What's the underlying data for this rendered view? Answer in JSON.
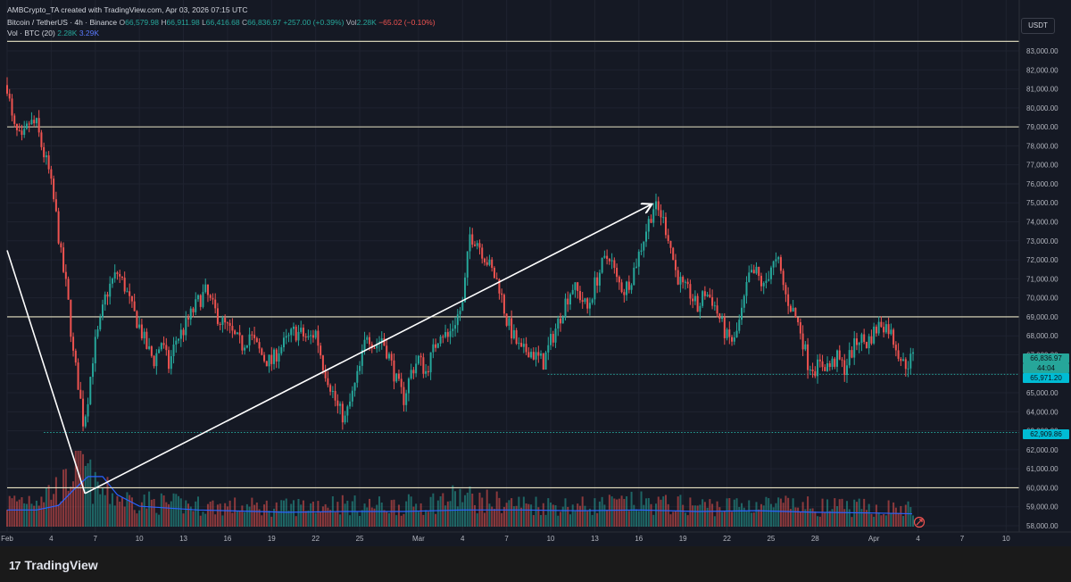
{
  "header": {
    "creator_line": "AMBCrypto_TA created with TradingView.com, Apr 03, 2026 07:15 UTC",
    "symbol": "Bitcoin / TetherUS · 4h · Binance",
    "open_label": "O",
    "open": "66,579.98",
    "high_label": "H",
    "high": "66,911.98",
    "low_label": "L",
    "low": "66,416.68",
    "close_label": "C",
    "close": "66,836.97",
    "change": "+257.00 (+0.39%)",
    "vol_label": "Vol",
    "vol": "2.28K",
    "vol_change": "−65.02 (−0.10%)",
    "vol_indicator": "Vol · BTC (20)",
    "vol_now": "2.28K",
    "vol_ma": "3.29K"
  },
  "currency_button": "USDT",
  "price_tags": {
    "last_price": "66,836.97",
    "countdown": "44:04",
    "support_a": "65,971.20",
    "support_b": "62,909.86"
  },
  "brand": {
    "logo": "17",
    "name": "TradingView"
  },
  "colors": {
    "bull": "#26a69a",
    "bear": "#ef5350",
    "level": "#e8e3c4",
    "trend": "#ffffff",
    "vol_ma": "#2962ff",
    "tag_cyan": "#00bcd4"
  },
  "chart_data": {
    "type": "candlestick",
    "title": "Bitcoin / TetherUS · 4h · Binance",
    "y_axis": {
      "min": 57500,
      "max": 83800,
      "ticks": [
        "58,000.00",
        "59,000.00",
        "60,000.00",
        "61,000.00",
        "62,000.00",
        "63,000.00",
        "64,000.00",
        "65,000.00",
        "66,000.00",
        "67,000.00",
        "68,000.00",
        "69,000.00",
        "70,000.00",
        "71,000.00",
        "72,000.00",
        "73,000.00",
        "74,000.00",
        "75,000.00",
        "76,000.00",
        "77,000.00",
        "78,000.00",
        "79,000.00",
        "80,000.00",
        "81,000.00",
        "82,000.00",
        "83,000.00"
      ],
      "tick_values": [
        58000,
        59000,
        60000,
        61000,
        62000,
        63000,
        64000,
        65000,
        66000,
        67000,
        68000,
        69000,
        70000,
        71000,
        72000,
        73000,
        74000,
        75000,
        76000,
        77000,
        78000,
        79000,
        80000,
        81000,
        82000,
        83000
      ]
    },
    "x_axis": {
      "start_day": 1,
      "end_day": 69.5,
      "ticks": [
        {
          "label": "Feb",
          "day": 1.0
        },
        {
          "label": "4",
          "day": 4.0
        },
        {
          "label": "7",
          "day": 7.0
        },
        {
          "label": "10",
          "day": 10.0
        },
        {
          "label": "13",
          "day": 13.0
        },
        {
          "label": "16",
          "day": 16.0
        },
        {
          "label": "19",
          "day": 19.0
        },
        {
          "label": "22",
          "day": 22.0
        },
        {
          "label": "25",
          "day": 25.0
        },
        {
          "label": "Mar",
          "day": 29.0
        },
        {
          "label": "4",
          "day": 32.0
        },
        {
          "label": "7",
          "day": 35.0
        },
        {
          "label": "10",
          "day": 38.0
        },
        {
          "label": "13",
          "day": 41.0
        },
        {
          "label": "16",
          "day": 44.0
        },
        {
          "label": "19",
          "day": 47.0
        },
        {
          "label": "22",
          "day": 50.0
        },
        {
          "label": "25",
          "day": 53.0
        },
        {
          "label": "28",
          "day": 56.0
        },
        {
          "label": "Apr",
          "day": 60.0
        },
        {
          "label": "4",
          "day": 63.0
        },
        {
          "label": "7",
          "day": 66.0
        },
        {
          "label": "10",
          "day": 69.0
        }
      ]
    },
    "horizontal_levels": [
      {
        "price": 83500,
        "style": "solid",
        "color": "#e8e3c4"
      },
      {
        "price": 79000,
        "style": "solid",
        "color": "#e8e3c4"
      },
      {
        "price": 69000,
        "style": "solid",
        "color": "#e8e3c4"
      },
      {
        "price": 60000,
        "style": "solid",
        "color": "#e8e3c4"
      },
      {
        "price": 65971.2,
        "style": "dotted",
        "color": "#26a69a",
        "from_day": 37.8
      },
      {
        "price": 62909.86,
        "style": "dotted",
        "color": "#26a69a",
        "from_day": 3.5
      }
    ],
    "trend_lines": [
      {
        "from": {
          "day": 1.0,
          "price": 72500
        },
        "to": {
          "day": 6.3,
          "price": 59700
        }
      },
      {
        "from": {
          "day": 6.3,
          "price": 59700
        },
        "to": {
          "day": 44.8,
          "price": 74900
        },
        "arrow": true
      }
    ],
    "price_path": [
      [
        1.0,
        81200
      ],
      [
        1.4,
        79000
      ],
      [
        2.0,
        78200
      ],
      [
        2.5,
        79200
      ],
      [
        3.0,
        79100
      ],
      [
        3.4,
        77800
      ],
      [
        3.8,
        76800
      ],
      [
        4.3,
        74500
      ],
      [
        4.7,
        72000
      ],
      [
        5.1,
        70200
      ],
      [
        5.5,
        67000
      ],
      [
        5.9,
        65200
      ],
      [
        6.2,
        63300
      ],
      [
        6.5,
        64800
      ],
      [
        6.9,
        67300
      ],
      [
        7.3,
        68500
      ],
      [
        7.7,
        70100
      ],
      [
        8.1,
        70800
      ],
      [
        8.5,
        71300
      ],
      [
        9.0,
        70600
      ],
      [
        9.5,
        69400
      ],
      [
        10.0,
        68500
      ],
      [
        10.5,
        67400
      ],
      [
        11.0,
        66700
      ],
      [
        11.5,
        67700
      ],
      [
        12.0,
        66400
      ],
      [
        12.5,
        67800
      ],
      [
        13.0,
        68300
      ],
      [
        13.5,
        69100
      ],
      [
        14.0,
        69800
      ],
      [
        14.5,
        70300
      ],
      [
        15.0,
        69500
      ],
      [
        15.5,
        68800
      ],
      [
        16.0,
        68400
      ],
      [
        16.5,
        67900
      ],
      [
        17.0,
        67500
      ],
      [
        17.5,
        68100
      ],
      [
        18.0,
        67400
      ],
      [
        18.5,
        66800
      ],
      [
        19.0,
        66600
      ],
      [
        19.5,
        67300
      ],
      [
        20.0,
        67700
      ],
      [
        20.5,
        68200
      ],
      [
        21.0,
        68100
      ],
      [
        21.5,
        67800
      ],
      [
        22.0,
        68200
      ],
      [
        22.5,
        66500
      ],
      [
        23.0,
        65400
      ],
      [
        23.5,
        64200
      ],
      [
        24.0,
        63600
      ],
      [
        24.5,
        64900
      ],
      [
        25.0,
        66300
      ],
      [
        25.5,
        68200
      ],
      [
        26.0,
        67500
      ],
      [
        26.5,
        67900
      ],
      [
        27.0,
        66900
      ],
      [
        27.5,
        65600
      ],
      [
        28.0,
        64700
      ],
      [
        28.5,
        66100
      ],
      [
        29.0,
        66800
      ],
      [
        29.5,
        66100
      ],
      [
        30.0,
        67200
      ],
      [
        30.5,
        68300
      ],
      [
        31.0,
        67900
      ],
      [
        31.5,
        68800
      ],
      [
        32.0,
        69600
      ],
      [
        32.5,
        73300
      ],
      [
        33.0,
        73000
      ],
      [
        33.5,
        72200
      ],
      [
        34.0,
        71400
      ],
      [
        34.5,
        70600
      ],
      [
        35.0,
        68800
      ],
      [
        35.5,
        67900
      ],
      [
        36.0,
        67100
      ],
      [
        36.5,
        67300
      ],
      [
        37.0,
        66900
      ],
      [
        37.5,
        66600
      ],
      [
        38.0,
        67700
      ],
      [
        38.5,
        68700
      ],
      [
        39.0,
        69800
      ],
      [
        39.5,
        70600
      ],
      [
        40.0,
        70100
      ],
      [
        40.5,
        69400
      ],
      [
        41.0,
        70700
      ],
      [
        41.5,
        71700
      ],
      [
        42.0,
        72300
      ],
      [
        42.5,
        70900
      ],
      [
        43.0,
        70400
      ],
      [
        43.5,
        71100
      ],
      [
        44.0,
        72300
      ],
      [
        44.5,
        73600
      ],
      [
        45.0,
        74800
      ],
      [
        45.5,
        74400
      ],
      [
        46.0,
        73300
      ],
      [
        46.5,
        71400
      ],
      [
        47.0,
        70500
      ],
      [
        47.5,
        70200
      ],
      [
        48.0,
        69400
      ],
      [
        48.5,
        70300
      ],
      [
        49.0,
        69900
      ],
      [
        49.5,
        68900
      ],
      [
        50.0,
        67900
      ],
      [
        50.5,
        67700
      ],
      [
        51.0,
        69200
      ],
      [
        51.5,
        71100
      ],
      [
        52.0,
        71300
      ],
      [
        52.5,
        70500
      ],
      [
        53.0,
        71700
      ],
      [
        53.5,
        71800
      ],
      [
        54.0,
        70100
      ],
      [
        54.5,
        69300
      ],
      [
        55.0,
        68300
      ],
      [
        55.5,
        66600
      ],
      [
        56.0,
        66300
      ],
      [
        56.5,
        66500
      ],
      [
        57.0,
        66400
      ],
      [
        57.5,
        66800
      ],
      [
        58.0,
        66300
      ],
      [
        58.5,
        67200
      ],
      [
        59.0,
        67900
      ],
      [
        59.5,
        67600
      ],
      [
        60.0,
        68200
      ],
      [
        60.5,
        68700
      ],
      [
        61.0,
        68400
      ],
      [
        61.5,
        67500
      ],
      [
        62.0,
        66500
      ],
      [
        62.3,
        66580
      ],
      [
        62.6,
        66837
      ]
    ],
    "volume_path": [
      [
        1,
        0.35
      ],
      [
        3,
        0.45
      ],
      [
        5,
        0.6
      ],
      [
        5.5,
        0.9
      ],
      [
        5.9,
        1.0
      ],
      [
        6.3,
        0.85
      ],
      [
        7,
        0.55
      ],
      [
        9,
        0.4
      ],
      [
        12,
        0.33
      ],
      [
        15,
        0.3
      ],
      [
        20,
        0.28
      ],
      [
        23,
        0.35
      ],
      [
        25,
        0.3
      ],
      [
        29,
        0.32
      ],
      [
        32,
        0.45
      ],
      [
        33,
        0.38
      ],
      [
        36,
        0.33
      ],
      [
        40,
        0.3
      ],
      [
        44,
        0.35
      ],
      [
        46,
        0.32
      ],
      [
        50,
        0.3
      ],
      [
        52,
        0.33
      ],
      [
        55,
        0.3
      ],
      [
        58,
        0.28
      ],
      [
        61,
        0.27
      ],
      [
        62.6,
        0.25
      ]
    ],
    "volume_ma_path": [
      [
        1,
        0.22
      ],
      [
        3,
        0.22
      ],
      [
        4.5,
        0.28
      ],
      [
        5.5,
        0.48
      ],
      [
        6.5,
        0.66
      ],
      [
        7.5,
        0.66
      ],
      [
        8.5,
        0.42
      ],
      [
        10,
        0.27
      ],
      [
        14,
        0.22
      ],
      [
        20,
        0.19
      ],
      [
        24,
        0.2
      ],
      [
        28,
        0.2
      ],
      [
        32,
        0.22
      ],
      [
        36,
        0.22
      ],
      [
        40,
        0.21
      ],
      [
        44,
        0.22
      ],
      [
        48,
        0.2
      ],
      [
        52,
        0.21
      ],
      [
        56,
        0.19
      ],
      [
        60,
        0.18
      ],
      [
        62.6,
        0.17
      ]
    ]
  }
}
